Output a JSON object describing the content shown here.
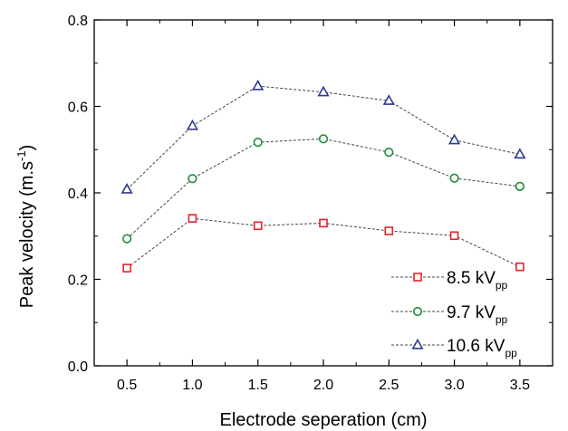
{
  "chart_data": {
    "type": "line",
    "xlabel": "Electrode seperation (cm)",
    "ylabel": {
      "main": "Peak velocity (m.s",
      "sup": "-1",
      "close": ")"
    },
    "xlim": [
      0.25,
      3.75
    ],
    "ylim": [
      0.0,
      0.8
    ],
    "xticks": [
      0.5,
      1.0,
      1.5,
      2.0,
      2.5,
      3.0,
      3.5
    ],
    "xtick_labels": [
      "0.5",
      "1.0",
      "1.5",
      "2.0",
      "2.5",
      "3.0",
      "3.5"
    ],
    "yticks": [
      0.0,
      0.2,
      0.4,
      0.6,
      0.8
    ],
    "ytick_labels": [
      "0.0",
      "0.2",
      "0.4",
      "0.6",
      "0.8"
    ],
    "grid": false,
    "legend_position": "bottom-right",
    "x": [
      0.5,
      1.0,
      1.5,
      2.0,
      2.5,
      3.0,
      3.5
    ],
    "series": [
      {
        "name": "8.5 kV",
        "name_sub": "pp",
        "marker": "square",
        "color": "#e8212a",
        "values": [
          0.226,
          0.341,
          0.324,
          0.33,
          0.312,
          0.301,
          0.229
        ]
      },
      {
        "name": "9.7 kV",
        "name_sub": "pp",
        "marker": "circle",
        "color": "#1e8c3a",
        "values": [
          0.294,
          0.433,
          0.517,
          0.525,
          0.494,
          0.434,
          0.415
        ]
      },
      {
        "name": "10.6 kV",
        "name_sub": "pp",
        "marker": "triangle",
        "color": "#2e3a8c",
        "values": [
          0.408,
          0.555,
          0.647,
          0.633,
          0.613,
          0.522,
          0.489
        ]
      }
    ]
  }
}
